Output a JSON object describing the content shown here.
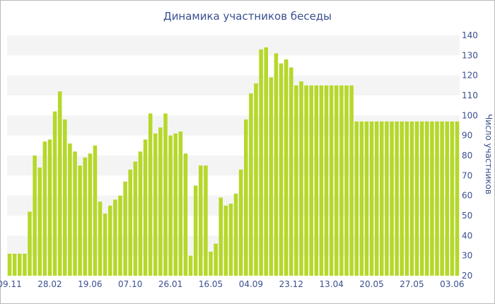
{
  "chart_data": {
    "type": "bar",
    "title": "Динамика участников беседы",
    "ylabel": "Число участников",
    "xlabel": "",
    "ylim": [
      20,
      140
    ],
    "y_ticks": [
      20,
      30,
      40,
      50,
      60,
      70,
      80,
      90,
      100,
      110,
      120,
      130,
      140
    ],
    "x_tick_labels": [
      {
        "label": "09.11",
        "index": 0
      },
      {
        "label": "28.02",
        "index": 8
      },
      {
        "label": "19.06",
        "index": 16
      },
      {
        "label": "07.10",
        "index": 24
      },
      {
        "label": "26.01",
        "index": 32
      },
      {
        "label": "16.05",
        "index": 40
      },
      {
        "label": "04.09",
        "index": 48
      },
      {
        "label": "23.12",
        "index": 56
      },
      {
        "label": "13.04",
        "index": 64
      },
      {
        "label": "20.05",
        "index": 72
      },
      {
        "label": "27.05",
        "index": 80
      },
      {
        "label": "03.06",
        "index": 88
      }
    ],
    "values": [
      31,
      31,
      31,
      31,
      52,
      80,
      74,
      87,
      88,
      102,
      112,
      98,
      86,
      82,
      75,
      79,
      81,
      85,
      57,
      51,
      55,
      58,
      60,
      67,
      73,
      77,
      82,
      88,
      101,
      91,
      94,
      101,
      90,
      91,
      92,
      81,
      30,
      65,
      75,
      75,
      32,
      36,
      59,
      55,
      56,
      61,
      73,
      98,
      111,
      116,
      133,
      134,
      119,
      131,
      126,
      128,
      124,
      115,
      117,
      115,
      115,
      115,
      115,
      115,
      115,
      115,
      115,
      115,
      115,
      97,
      97,
      97,
      97,
      97,
      97,
      97,
      97,
      97,
      97,
      97,
      97,
      97,
      97,
      97,
      97,
      97,
      97,
      97,
      97,
      97
    ],
    "colors": {
      "bar": "#b5d82a",
      "band": "#f4f4f4",
      "text": "#3a4f8f"
    },
    "grid": "alternating horizontal bands",
    "y_axis_position": "right"
  }
}
